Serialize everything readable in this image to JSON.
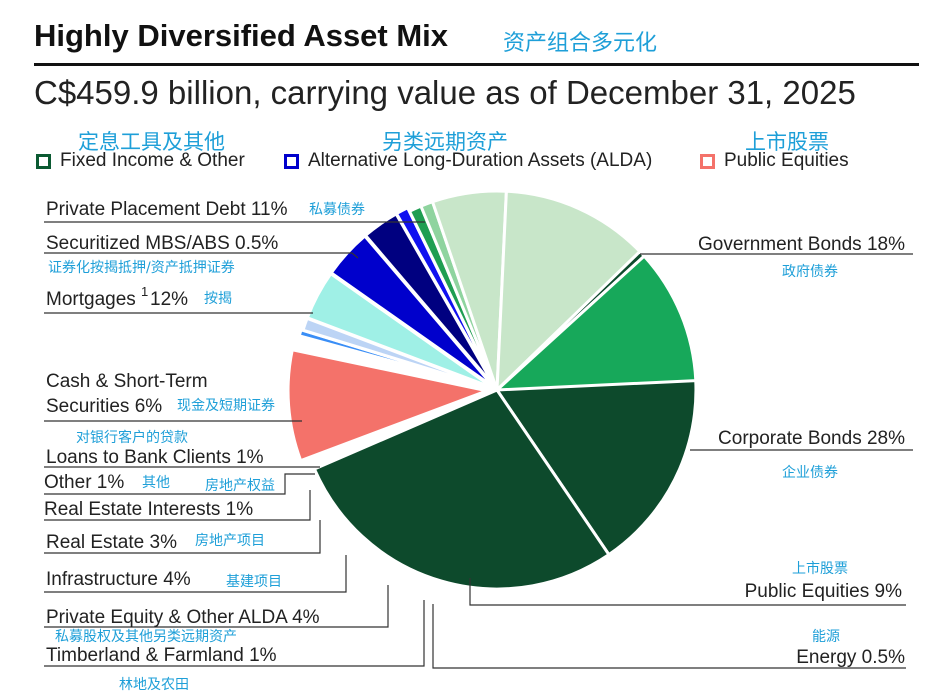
{
  "title": "Highly Diversified Asset Mix",
  "title_zh": "资产组合多元化",
  "subtitle": "C$459.9 billion, carrying value as of December 31, 2025",
  "colors": {
    "fixed_income": "#0b5a32",
    "alda": "#0000cc",
    "public_equities": "#f4726a",
    "leader": "#333333",
    "chinese_text": "#1e9fd8"
  },
  "legend": [
    {
      "label": "Fixed Income & Other",
      "label_zh": "定息工具及其他",
      "color": "#0b5a32"
    },
    {
      "label": "Alternative Long-Duration Assets (ALDA)",
      "label_zh": "另类远期资产",
      "color": "#0000cc"
    },
    {
      "label": "Public Equities",
      "label_zh": "上市股票",
      "color": "#f4726a"
    }
  ],
  "chart_data": {
    "type": "pie",
    "title": "Highly Diversified Asset Mix",
    "subtitle": "C$459.9 billion, carrying value as of December 31, 2025",
    "total": "C$459.9 billion",
    "slices": [
      {
        "key": "gov",
        "name": "Government Bonds 18%",
        "label_zh": "政府债券",
        "value": 18,
        "group": "Fixed Income & Other",
        "color": "#0d4a2c"
      },
      {
        "key": "corp",
        "name": "Corporate Bonds 28%",
        "label_zh": "企业债券",
        "value": 28,
        "group": "Fixed Income & Other",
        "color": "#0d4a2c"
      },
      {
        "key": "pubeq",
        "name": "Public Equities 9%",
        "label_zh": "上市股票",
        "value": 9,
        "group": "Public Equities",
        "color": "#f4726a"
      },
      {
        "key": "energy",
        "name": "Energy 0.5%",
        "label_zh": "能源",
        "value": 0.5,
        "group": "ALDA",
        "color": "#3a8ef6"
      },
      {
        "key": "timber",
        "name": "Timberland & Farmland 1%",
        "label_zh": "林地及农田",
        "value": 1,
        "group": "ALDA",
        "color": "#bcd4f5"
      },
      {
        "key": "pe",
        "name": "Private Equity & Other ALDA 4%",
        "label_zh": "私募股权及其他另类远期资产",
        "value": 4,
        "group": "ALDA",
        "color": "#9ff0e6"
      },
      {
        "key": "infra",
        "name": "Infrastructure 4%",
        "label_zh": "基建项目",
        "value": 4,
        "group": "ALDA",
        "color": "#0000cc"
      },
      {
        "key": "re",
        "name": "Real Estate 3%",
        "label_zh": "房地产项目",
        "value": 3,
        "group": "ALDA",
        "color": "#000080"
      },
      {
        "key": "rei",
        "name": "Real Estate Interests 1%",
        "label_zh": "房地产权益",
        "value": 1,
        "group": "ALDA",
        "color": "#1010f0"
      },
      {
        "key": "other",
        "name": "Other 1%",
        "label_zh": "其他",
        "value": 1,
        "group": "Fixed Income & Other",
        "color": "#1f9e52"
      },
      {
        "key": "loans",
        "name": "Loans to Bank Clients 1%",
        "label_zh": "对银行客户的贷款",
        "value": 1,
        "group": "Fixed Income & Other",
        "color": "#8fd49f"
      },
      {
        "key": "cash",
        "name": "Cash & Short-Term Securities 6%",
        "label_zh": "现金及短期证券",
        "value": 6,
        "group": "Fixed Income & Other",
        "color": "#c8e6c9"
      },
      {
        "key": "mort",
        "name": "Mortgages 12%",
        "label_zh": "按揭",
        "value": 12,
        "group": "Fixed Income & Other",
        "color": "#c8e6c9"
      },
      {
        "key": "mbs",
        "name": "Securitized MBS/ABS 0.5%",
        "label_zh": "证券化按揭抵押/资产抵押证券",
        "value": 0.5,
        "group": "Fixed Income & Other",
        "color": "#0d4a2c"
      },
      {
        "key": "ppd",
        "name": "Private Placement Debt 11%",
        "label_zh": "私募债券",
        "value": 11,
        "group": "Fixed Income & Other",
        "color": "#17a85a"
      }
    ],
    "labels": {
      "gov": [
        "Government Bonds 18%"
      ],
      "corp": [
        "Corporate Bonds 28%"
      ],
      "pubeq": [
        "Public Equities 9%"
      ],
      "energy": [
        "Energy 0.5%"
      ],
      "timber": [
        "Timberland & Farmland 1%"
      ],
      "pe": [
        "Private Equity & Other ALDA 4%"
      ],
      "infra": [
        "Infrastructure 4%"
      ],
      "re": [
        "Real Estate 3%"
      ],
      "rei": [
        "Real Estate Interests 1%"
      ],
      "other": [
        "Other 1%"
      ],
      "loans": [
        "Loans to Bank Clients 1%"
      ],
      "cash": [
        "Cash & Short-Term",
        "Securities 6%"
      ],
      "mort": [
        "Mortgages",
        "1",
        "12%"
      ],
      "mbs": [
        "Securitized MBS/ABS 0.5%"
      ],
      "ppd": [
        "Private Placement Debt 11%"
      ]
    },
    "footnote_marker": "1",
    "legend_position": "top"
  }
}
